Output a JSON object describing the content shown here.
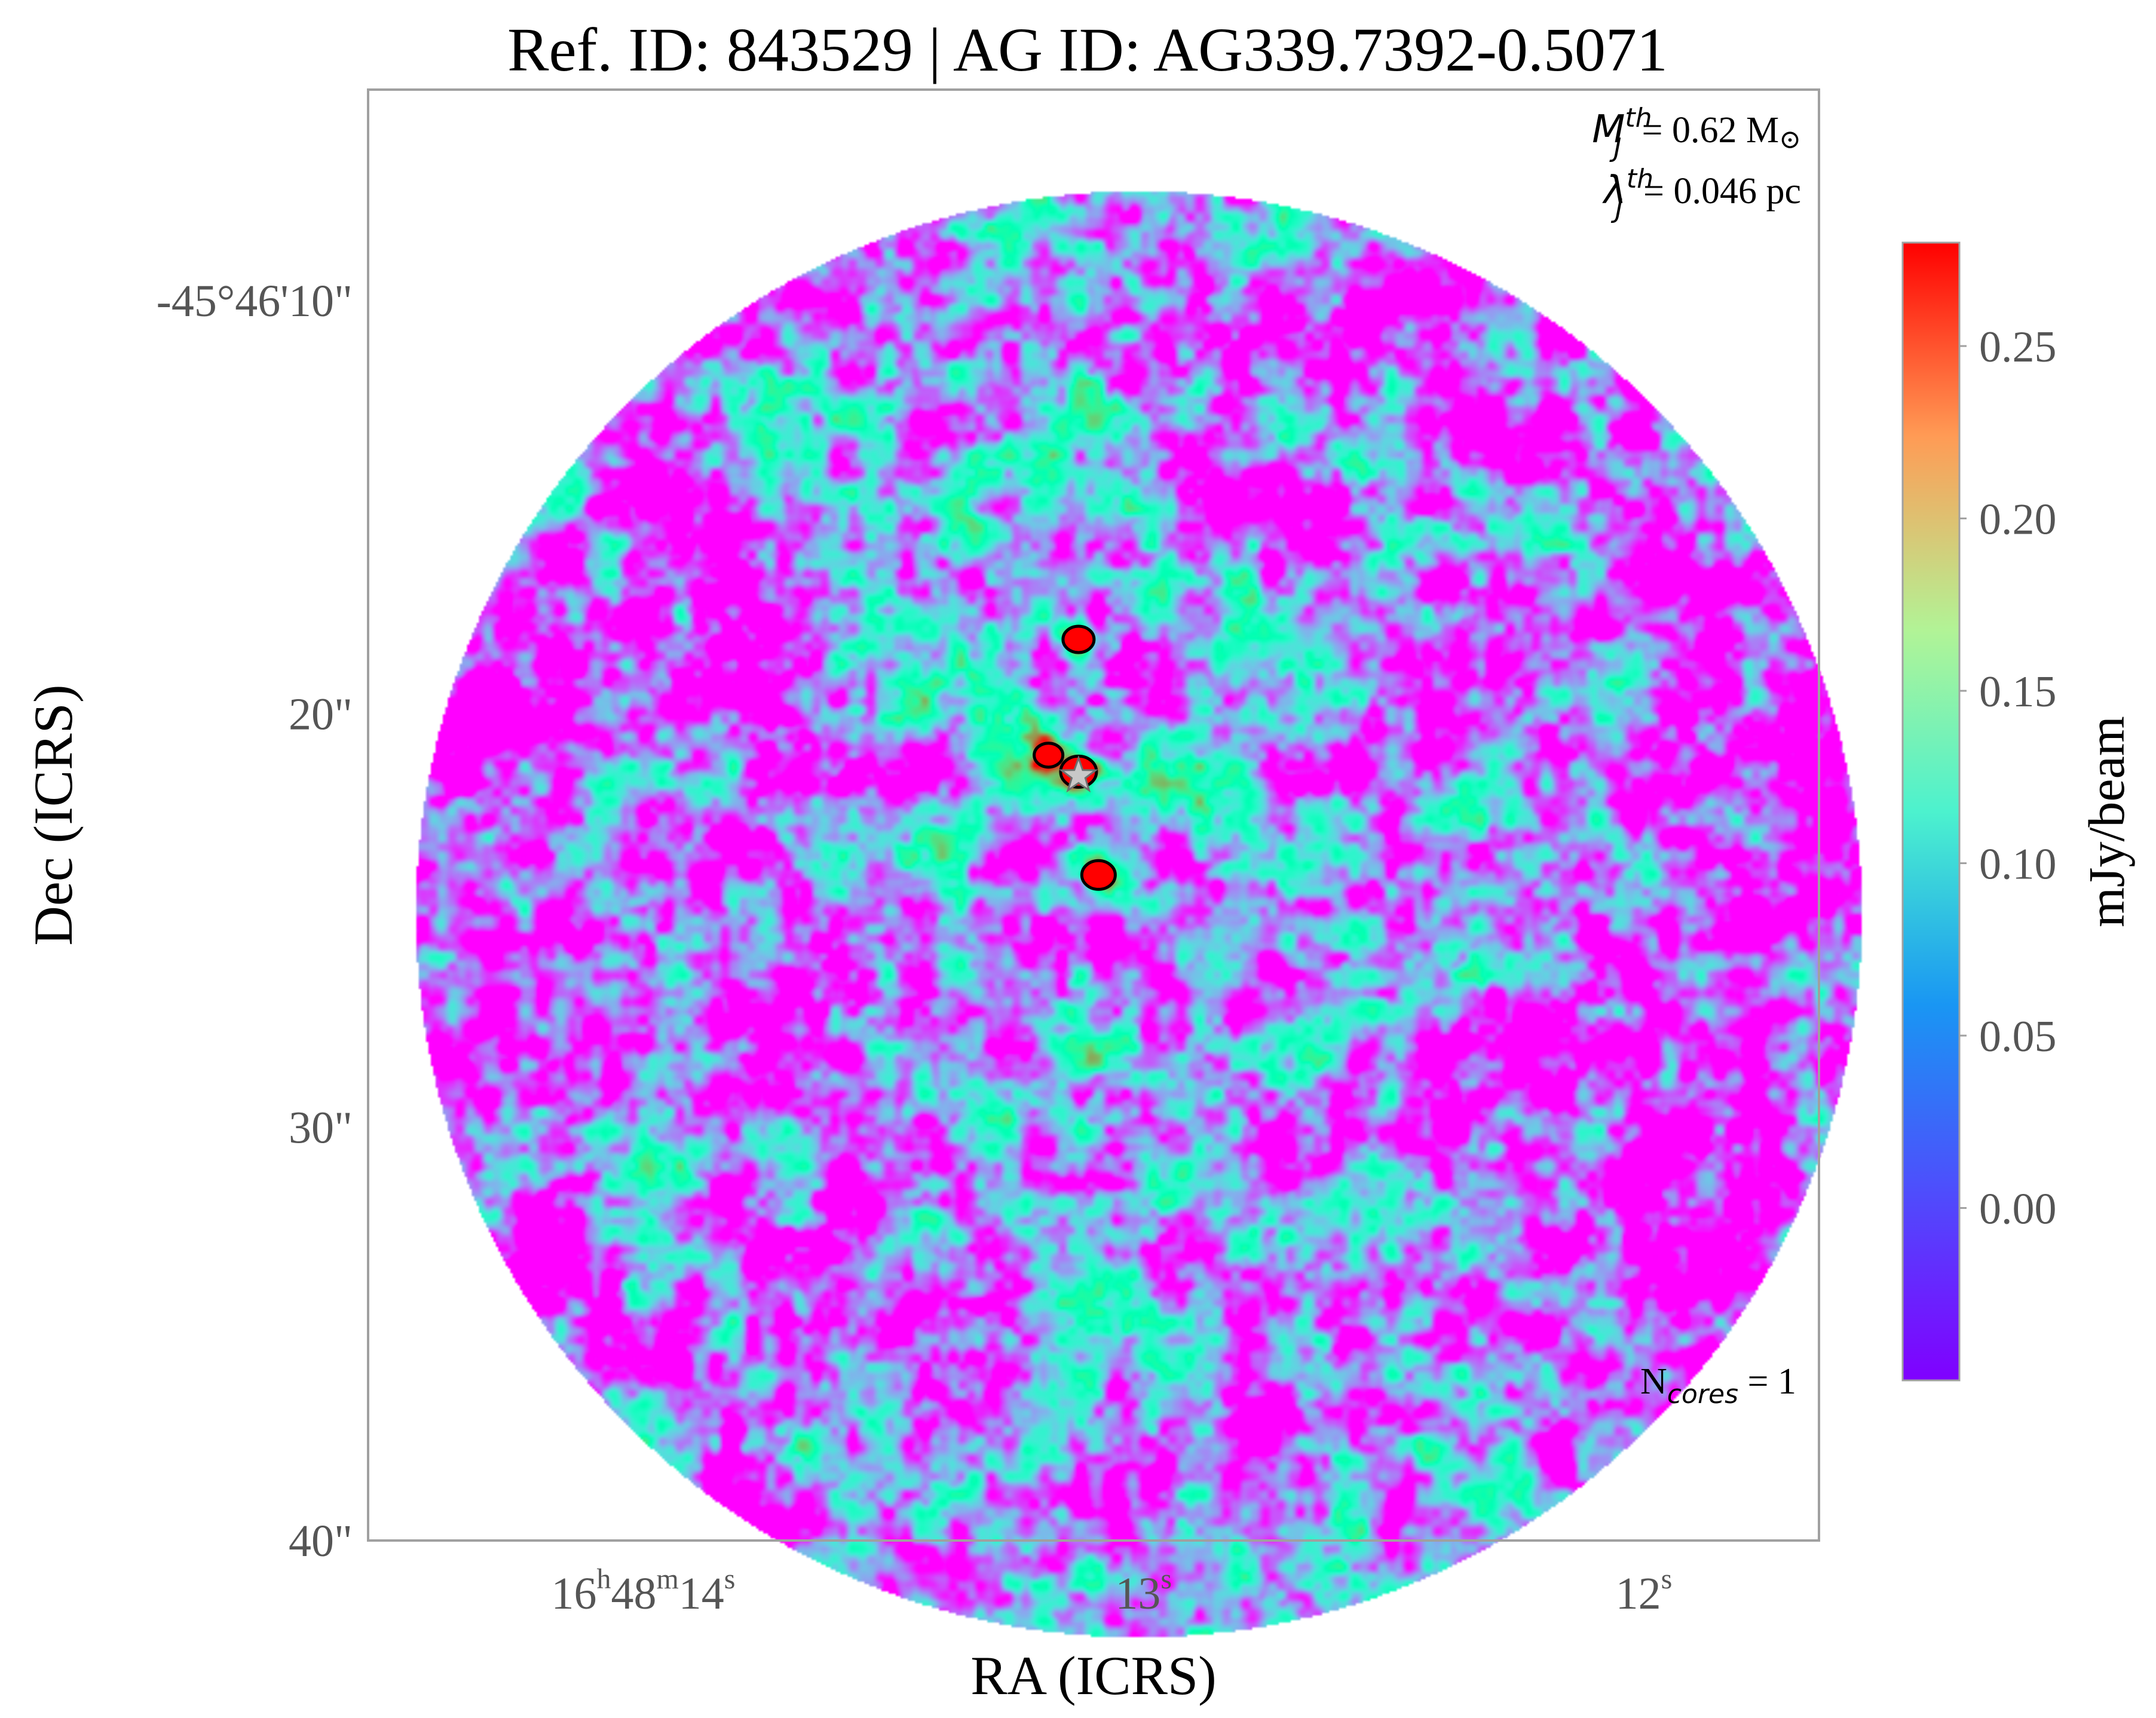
{
  "chart_data": {
    "type": "heatmap",
    "title": "Ref. ID: 843529 | AG ID: AG339.7392-0.5071",
    "xlabel": "RA (ICRS)",
    "ylabel": "Dec (ICRS)",
    "x_ticks": [
      {
        "label_parts": [
          "16",
          "h",
          "48",
          "m",
          "14",
          "s"
        ],
        "ra_seconds": 14
      },
      {
        "label_parts": [
          "13",
          "s"
        ],
        "ra_seconds": 13
      },
      {
        "label_parts": [
          "12",
          "s"
        ],
        "ra_seconds": 12
      }
    ],
    "y_ticks": [
      {
        "label": "-45°46'10\"",
        "dec_arcsec": 10
      },
      {
        "label": "20\"",
        "dec_arcsec": 20
      },
      {
        "label": "30\"",
        "dec_arcsec": 30
      },
      {
        "label": "40\"",
        "dec_arcsec": 40
      }
    ],
    "x_range_ra_s": [
      14.55,
      11.65
    ],
    "y_range_dec_arcsec": [
      4.9,
      40.0
    ],
    "colorbar": {
      "label": "mJy/beam",
      "range": [
        -0.05,
        0.28
      ],
      "ticks": [
        "0.00",
        "0.05",
        "0.10",
        "0.15",
        "0.20",
        "0.25"
      ],
      "tick_values": [
        0.0,
        0.05,
        0.1,
        0.15,
        0.2,
        0.25
      ],
      "colormap": "rainbow"
    },
    "annotations": {
      "mass_symbol": "M",
      "mass_sup": "th",
      "mass_sub": "J",
      "mass_value": "= 0.62 M",
      "mass_unit_symbol": "⊙",
      "length_symbol": "λ",
      "length_sup": "th",
      "length_sub": "J",
      "length_value": "= 0.046 pc",
      "ncores_symbol": "N",
      "ncores_sub": "cores",
      "ncores_value": " = 1"
    },
    "marker": {
      "type": "star",
      "color": "#c8c8c8",
      "ra_s": 13.13,
      "dec_arcsec": 21.5
    },
    "cores": [
      {
        "ra_s": 13.13,
        "dec_arcsec": 21.4,
        "peak": 0.28
      },
      {
        "ra_s": 13.09,
        "dec_arcsec": 23.9,
        "peak": 0.27
      },
      {
        "ra_s": 13.13,
        "dec_arcsec": 18.2,
        "peak": 0.26
      },
      {
        "ra_s": 13.19,
        "dec_arcsec": 21.0,
        "peak": 0.23
      }
    ],
    "grid": false,
    "colors": {
      "noise_min": "#8000ff",
      "peak": "#ff0000",
      "contour": "#000000",
      "frame": "#a0a0a0",
      "tick_text": "#555555"
    }
  }
}
